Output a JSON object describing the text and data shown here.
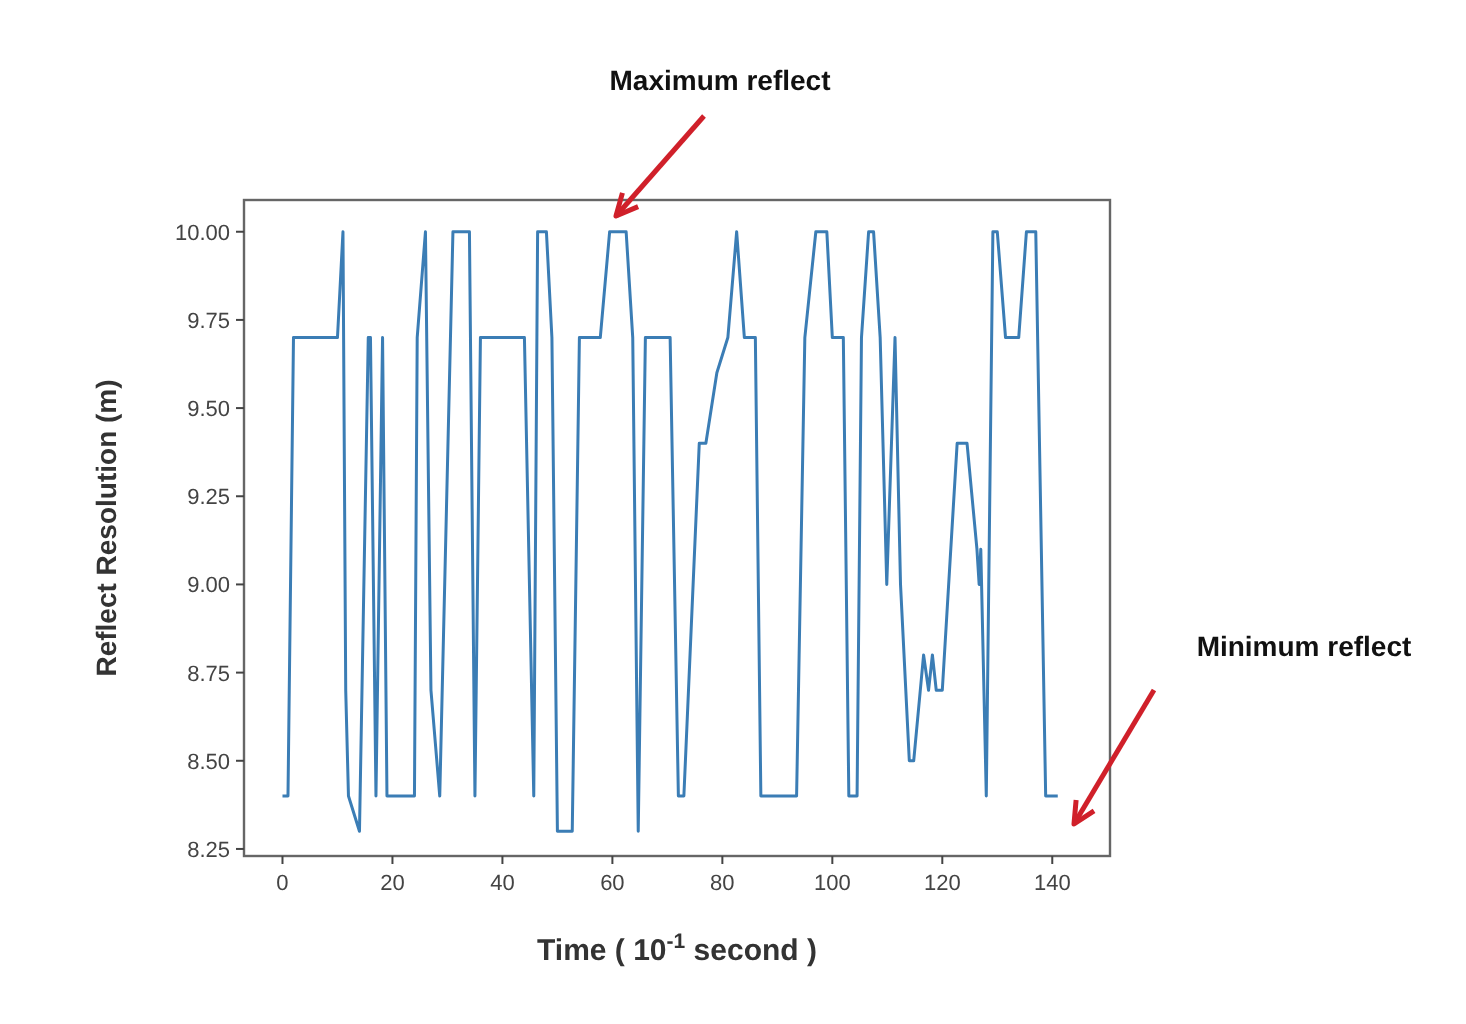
{
  "chart_data": {
    "type": "line",
    "xlabel": "Time ( 10$^{-1}$ second )",
    "ylabel": "Reflect Resolution (m)",
    "x": [
      0,
      1,
      2,
      10,
      11,
      11.5,
      12,
      14,
      15.6,
      16,
      17,
      18.2,
      19,
      24,
      24.5,
      26,
      27,
      28.6,
      31,
      34,
      35,
      36,
      44,
      45.7,
      46.4,
      47,
      48,
      49,
      50,
      52.7,
      54,
      57.8,
      59.5,
      62.5,
      63.7,
      64.7,
      66,
      70.5,
      72,
      73,
      75.8,
      77,
      79,
      81,
      82.6,
      84,
      86,
      87,
      93.5,
      95,
      97,
      99,
      100,
      102,
      103,
      104.5,
      105.3,
      106.6,
      107.5,
      108.7,
      109.9,
      111.4,
      112.4,
      114,
      114.8,
      116.6,
      117.5,
      118.2,
      118.9,
      120,
      122.7,
      124.5,
      126.3,
      126.7,
      127,
      128,
      129.2,
      130,
      131.5,
      133.9,
      135.3,
      137,
      138.8,
      141
    ],
    "values": [
      8.4,
      8.4,
      9.7,
      9.7,
      10.0,
      8.7,
      8.4,
      8.3,
      9.7,
      9.7,
      8.4,
      9.7,
      8.4,
      8.4,
      9.7,
      10.0,
      8.7,
      8.4,
      10.0,
      10.0,
      8.4,
      9.7,
      9.7,
      8.4,
      10.0,
      10.0,
      10.0,
      9.7,
      8.3,
      8.3,
      9.7,
      9.7,
      10.0,
      10.0,
      9.7,
      8.3,
      9.7,
      9.7,
      8.4,
      8.4,
      9.4,
      9.4,
      9.6,
      9.7,
      10.0,
      9.7,
      9.7,
      8.4,
      8.4,
      9.7,
      10.0,
      10.0,
      9.7,
      9.7,
      8.4,
      8.4,
      9.7,
      10.0,
      10.0,
      9.7,
      9.0,
      9.7,
      9.0,
      8.5,
      8.5,
      8.8,
      8.7,
      8.8,
      8.7,
      8.7,
      9.4,
      9.4,
      9.1,
      9.0,
      9.1,
      8.4,
      10.0,
      10.0,
      9.7,
      9.7,
      10.0,
      10.0,
      8.4,
      8.4
    ],
    "color": "#3b7db5",
    "xlim": [
      -7,
      150.5
    ],
    "ylim": [
      8.23,
      10.09
    ],
    "xticks": [
      0,
      20,
      40,
      60,
      80,
      100,
      120,
      140
    ],
    "yticks": [
      {
        "value": 8.25,
        "label": "8.25"
      },
      {
        "value": 8.5,
        "label": "8.50"
      },
      {
        "value": 8.75,
        "label": "8.75"
      },
      {
        "value": 9,
        "label": "9.00"
      },
      {
        "value": 9.25,
        "label": "9.25"
      },
      {
        "value": 9.5,
        "label": "9.50"
      },
      {
        "value": 9.75,
        "label": "9.75"
      },
      {
        "value": 10,
        "label": "10.00"
      }
    ],
    "annotations": [
      "Maximum reflect",
      "Minimum reflect"
    ]
  }
}
